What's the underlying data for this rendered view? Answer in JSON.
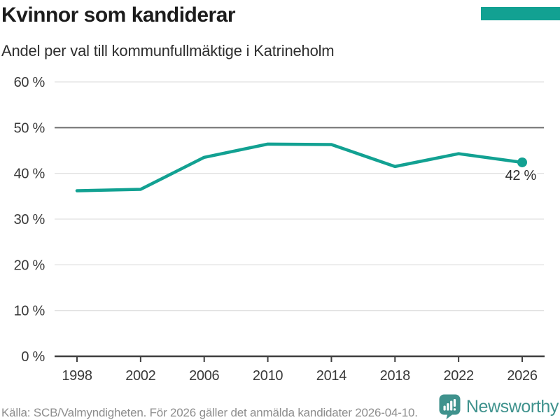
{
  "header": {
    "title": "Kvinnor som kandiderar",
    "subtitle": "Andel per val till kommunfullmäktige i Katrineholm"
  },
  "accent_color": "#12a192",
  "chart_data": {
    "type": "line",
    "title": "Kvinnor som kandiderar",
    "subtitle": "Andel per val till kommunfullmäktige i Katrineholm",
    "x": [
      1998,
      2002,
      2006,
      2010,
      2014,
      2018,
      2022,
      2026
    ],
    "values": [
      36.2,
      36.5,
      43.5,
      46.4,
      46.3,
      41.5,
      44.3,
      42.4
    ],
    "x_tick_labels": [
      "1998",
      "2002",
      "2006",
      "2010",
      "2014",
      "2018",
      "2022",
      "2026"
    ],
    "y_ticks": [
      {
        "value": 0,
        "label": "0 %"
      },
      {
        "value": 10,
        "label": "10 %"
      },
      {
        "value": 20,
        "label": "20 %"
      },
      {
        "value": 30,
        "label": "30 %"
      },
      {
        "value": 40,
        "label": "40 %"
      },
      {
        "value": 50,
        "label": "50 %"
      },
      {
        "value": 60,
        "label": "60 %"
      }
    ],
    "emphasized_y_tick": 50,
    "ylim": [
      0,
      60
    ],
    "xlim": [
      1998,
      2026
    ],
    "grid": true,
    "legend_position": "none",
    "end_point_label": "42 %",
    "line_color": "#12a192",
    "gridline_color": "#e1e1e1",
    "emphasized_gridline_color": "#6e6e6e",
    "axis_color": "#3f3f3f"
  },
  "footer": {
    "source": "Källa: SCB/Valmyndigheten. För 2026 gäller det anmälda kandidater 2026-04-10.",
    "brand": "Newsworthy",
    "brand_color": "#3f928d",
    "logo_icon": "bar-chart-speech-bubble-icon"
  }
}
